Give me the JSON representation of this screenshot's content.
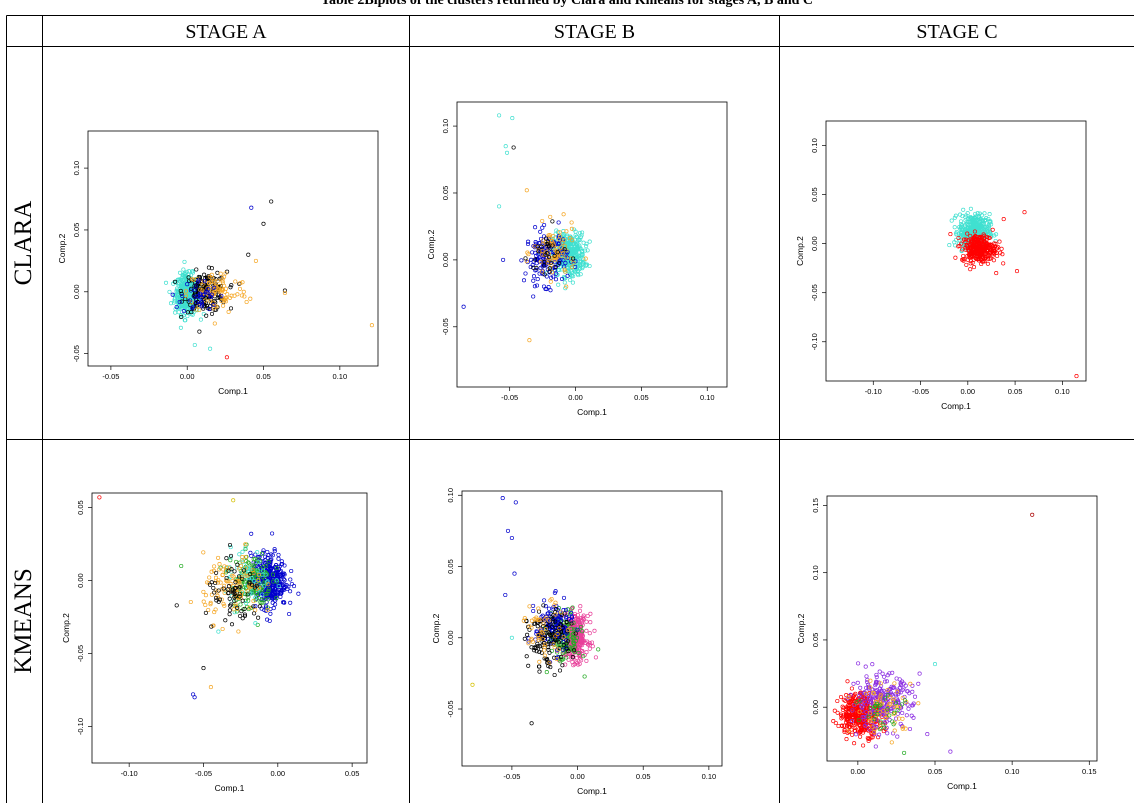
{
  "caption": "Table 2Biplots of the clusters returned by Clara and Kmeans for stages A, B and C",
  "columns": [
    "STAGE A",
    "STAGE B",
    "STAGE C"
  ],
  "rows": [
    "CLARA",
    "KMEANS"
  ],
  "colors": {
    "black": "#000000",
    "cyan": "#40e0d0",
    "blue": "#0000cd",
    "orange": "#f5a623",
    "red": "#ff0000",
    "green": "#22aa22",
    "pink": "#e8409a",
    "purple": "#8a2be2",
    "yellow": "#d4c000",
    "darkred": "#aa0000"
  },
  "chart_data": [
    {
      "id": "clara-a",
      "type": "scatter",
      "xlabel": "Comp.1",
      "ylabel": "Comp.2",
      "xlim": [
        -0.065,
        0.125
      ],
      "ylim": [
        -0.06,
        0.13
      ],
      "xticks": [
        "-0.05",
        "0.00",
        "0.05",
        "0.10"
      ],
      "yticks": [
        "-0.05",
        "0.00",
        "0.05",
        "0.10"
      ],
      "cloud": [
        {
          "color": "cyan",
          "n": 420,
          "cx": 0.0,
          "cy": -0.002,
          "sx": 0.004,
          "sy": 0.008
        },
        {
          "color": "black",
          "n": 160,
          "cx": 0.012,
          "cy": 0.0,
          "sx": 0.007,
          "sy": 0.008
        },
        {
          "color": "orange",
          "n": 90,
          "cx": 0.02,
          "cy": 0.0,
          "sx": 0.01,
          "sy": 0.009
        },
        {
          "color": "blue",
          "n": 40,
          "cx": 0.008,
          "cy": -0.004,
          "sx": 0.006,
          "sy": 0.007
        }
      ],
      "outliers": [
        {
          "x": 0.042,
          "y": 0.068,
          "c": "blue"
        },
        {
          "x": 0.055,
          "y": 0.073,
          "c": "black"
        },
        {
          "x": 0.05,
          "y": 0.055,
          "c": "black"
        },
        {
          "x": 0.121,
          "y": -0.027,
          "c": "orange"
        },
        {
          "x": 0.064,
          "y": 0.001,
          "c": "black"
        },
        {
          "x": 0.064,
          "y": -0.001,
          "c": "orange"
        },
        {
          "x": 0.026,
          "y": -0.053,
          "c": "red"
        },
        {
          "x": 0.005,
          "y": -0.043,
          "c": "cyan"
        },
        {
          "x": 0.015,
          "y": -0.046,
          "c": "cyan"
        },
        {
          "x": 0.045,
          "y": 0.025,
          "c": "orange"
        },
        {
          "x": 0.04,
          "y": 0.03,
          "c": "black"
        }
      ]
    },
    {
      "id": "clara-b",
      "type": "scatter",
      "xlabel": "Comp.1",
      "ylabel": "Comp.2",
      "xlim": [
        -0.09,
        0.115
      ],
      "ylim": [
        -0.095,
        0.118
      ],
      "xticks": [
        "-0.05",
        "0.00",
        "0.05",
        "0.10"
      ],
      "yticks": [
        "-0.05",
        "0.00",
        "0.05",
        "0.10"
      ],
      "cloud": [
        {
          "color": "cyan",
          "n": 380,
          "cx": -0.005,
          "cy": 0.004,
          "sx": 0.006,
          "sy": 0.008
        },
        {
          "color": "blue",
          "n": 160,
          "cx": -0.022,
          "cy": 0.002,
          "sx": 0.008,
          "sy": 0.01
        },
        {
          "color": "orange",
          "n": 80,
          "cx": -0.016,
          "cy": 0.005,
          "sx": 0.008,
          "sy": 0.01
        },
        {
          "color": "black",
          "n": 30,
          "cx": -0.02,
          "cy": 0.003,
          "sx": 0.008,
          "sy": 0.01
        }
      ],
      "outliers": [
        {
          "x": -0.058,
          "y": 0.108,
          "c": "cyan"
        },
        {
          "x": -0.048,
          "y": 0.106,
          "c": "cyan"
        },
        {
          "x": -0.053,
          "y": 0.085,
          "c": "cyan"
        },
        {
          "x": -0.052,
          "y": 0.08,
          "c": "cyan"
        },
        {
          "x": -0.047,
          "y": 0.084,
          "c": "black"
        },
        {
          "x": -0.085,
          "y": -0.035,
          "c": "blue"
        },
        {
          "x": -0.035,
          "y": -0.06,
          "c": "orange"
        },
        {
          "x": -0.055,
          "y": 0.0,
          "c": "blue"
        },
        {
          "x": -0.058,
          "y": 0.04,
          "c": "cyan"
        },
        {
          "x": -0.037,
          "y": 0.052,
          "c": "orange"
        }
      ]
    },
    {
      "id": "clara-c",
      "type": "scatter",
      "xlabel": "Comp.1",
      "ylabel": "Comp.2",
      "xlim": [
        -0.15,
        0.125
      ],
      "ylim": [
        -0.14,
        0.125
      ],
      "xticks": [
        "-0.10",
        "-0.05",
        "0.00",
        "0.05",
        "0.10"
      ],
      "yticks": [
        "-0.10",
        "-0.05",
        "0.00",
        "0.05",
        "0.10"
      ],
      "cloud": [
        {
          "color": "cyan",
          "n": 420,
          "cx": 0.007,
          "cy": 0.012,
          "sx": 0.008,
          "sy": 0.009
        },
        {
          "color": "red",
          "n": 320,
          "cx": 0.012,
          "cy": -0.005,
          "sx": 0.009,
          "sy": 0.007
        }
      ],
      "outliers": [
        {
          "x": 0.115,
          "y": -0.135,
          "c": "red"
        },
        {
          "x": 0.06,
          "y": 0.032,
          "c": "red"
        },
        {
          "x": 0.052,
          "y": -0.028,
          "c": "red"
        },
        {
          "x": 0.038,
          "y": 0.025,
          "c": "red"
        },
        {
          "x": 0.03,
          "y": -0.03,
          "c": "red"
        }
      ]
    },
    {
      "id": "kmeans-a",
      "type": "scatter",
      "xlabel": "Comp.1",
      "ylabel": "Comp.2",
      "xlim": [
        -0.125,
        0.06
      ],
      "ylim": [
        -0.125,
        0.06
      ],
      "xticks": [
        "-0.10",
        "-0.05",
        "0.00",
        "0.05"
      ],
      "yticks": [
        "-0.10",
        "-0.05",
        "0.00",
        "0.05"
      ],
      "cloud": [
        {
          "color": "blue",
          "n": 380,
          "cx": -0.006,
          "cy": 0.0,
          "sx": 0.006,
          "sy": 0.009
        },
        {
          "color": "green",
          "n": 150,
          "cx": -0.018,
          "cy": 0.0,
          "sx": 0.007,
          "sy": 0.01
        },
        {
          "color": "cyan",
          "n": 70,
          "cx": -0.02,
          "cy": 0.002,
          "sx": 0.008,
          "sy": 0.01
        },
        {
          "color": "orange",
          "n": 110,
          "cx": -0.03,
          "cy": -0.005,
          "sx": 0.01,
          "sy": 0.011
        },
        {
          "color": "black",
          "n": 70,
          "cx": -0.028,
          "cy": -0.012,
          "sx": 0.01,
          "sy": 0.011
        }
      ],
      "outliers": [
        {
          "x": -0.12,
          "y": 0.057,
          "c": "red"
        },
        {
          "x": -0.03,
          "y": 0.055,
          "c": "yellow"
        },
        {
          "x": -0.065,
          "y": 0.01,
          "c": "green"
        },
        {
          "x": -0.068,
          "y": -0.017,
          "c": "black"
        },
        {
          "x": -0.057,
          "y": -0.078,
          "c": "blue"
        },
        {
          "x": -0.056,
          "y": -0.08,
          "c": "blue"
        },
        {
          "x": -0.045,
          "y": -0.073,
          "c": "orange"
        },
        {
          "x": -0.05,
          "y": -0.06,
          "c": "black"
        },
        {
          "x": -0.04,
          "y": -0.035,
          "c": "cyan"
        }
      ]
    },
    {
      "id": "kmeans-b",
      "type": "scatter",
      "xlabel": "Comp.1",
      "ylabel": "Comp.2",
      "xlim": [
        -0.088,
        0.11
      ],
      "ylim": [
        -0.09,
        0.103
      ],
      "xticks": [
        "-0.05",
        "0.00",
        "0.05",
        "0.10"
      ],
      "yticks": [
        "-0.05",
        "0.00",
        "0.05",
        "0.10"
      ],
      "cloud": [
        {
          "color": "pink",
          "n": 320,
          "cx": -0.002,
          "cy": 0.0,
          "sx": 0.005,
          "sy": 0.008
        },
        {
          "color": "green",
          "n": 130,
          "cx": -0.01,
          "cy": 0.0,
          "sx": 0.006,
          "sy": 0.009
        },
        {
          "color": "blue",
          "n": 140,
          "cx": -0.018,
          "cy": 0.008,
          "sx": 0.007,
          "sy": 0.009
        },
        {
          "color": "black",
          "n": 120,
          "cx": -0.022,
          "cy": -0.002,
          "sx": 0.008,
          "sy": 0.01
        },
        {
          "color": "orange",
          "n": 50,
          "cx": -0.026,
          "cy": 0.005,
          "sx": 0.009,
          "sy": 0.01
        }
      ],
      "outliers": [
        {
          "x": -0.057,
          "y": 0.098,
          "c": "blue"
        },
        {
          "x": -0.047,
          "y": 0.095,
          "c": "blue"
        },
        {
          "x": -0.053,
          "y": 0.075,
          "c": "blue"
        },
        {
          "x": -0.05,
          "y": 0.07,
          "c": "blue"
        },
        {
          "x": -0.08,
          "y": -0.033,
          "c": "yellow"
        },
        {
          "x": -0.035,
          "y": -0.06,
          "c": "black"
        },
        {
          "x": -0.048,
          "y": 0.045,
          "c": "blue"
        },
        {
          "x": -0.055,
          "y": 0.03,
          "c": "blue"
        },
        {
          "x": -0.05,
          "y": 0.0,
          "c": "cyan"
        }
      ]
    },
    {
      "id": "kmeans-c",
      "type": "scatter",
      "xlabel": "Comp.1",
      "ylabel": "Comp.2",
      "xlim": [
        -0.02,
        0.155
      ],
      "ylim": [
        -0.04,
        0.157
      ],
      "xticks": [
        "0.00",
        "0.05",
        "0.10",
        "0.15"
      ],
      "yticks": [
        "0.00",
        "0.05",
        "0.10",
        "0.15"
      ],
      "cloud": [
        {
          "color": "red",
          "n": 380,
          "cx": 0.002,
          "cy": -0.005,
          "sx": 0.007,
          "sy": 0.008
        },
        {
          "color": "purple",
          "n": 240,
          "cx": 0.015,
          "cy": 0.004,
          "sx": 0.01,
          "sy": 0.01
        },
        {
          "color": "orange",
          "n": 60,
          "cx": 0.018,
          "cy": 0.0,
          "sx": 0.01,
          "sy": 0.01
        },
        {
          "color": "green",
          "n": 30,
          "cx": 0.018,
          "cy": -0.005,
          "sx": 0.01,
          "sy": 0.01
        }
      ],
      "outliers": [
        {
          "x": 0.113,
          "y": 0.143,
          "c": "darkred"
        },
        {
          "x": 0.06,
          "y": -0.033,
          "c": "purple"
        },
        {
          "x": 0.05,
          "y": 0.032,
          "c": "cyan"
        },
        {
          "x": 0.03,
          "y": -0.034,
          "c": "green"
        },
        {
          "x": 0.045,
          "y": -0.02,
          "c": "purple"
        },
        {
          "x": 0.04,
          "y": 0.025,
          "c": "purple"
        }
      ]
    }
  ]
}
